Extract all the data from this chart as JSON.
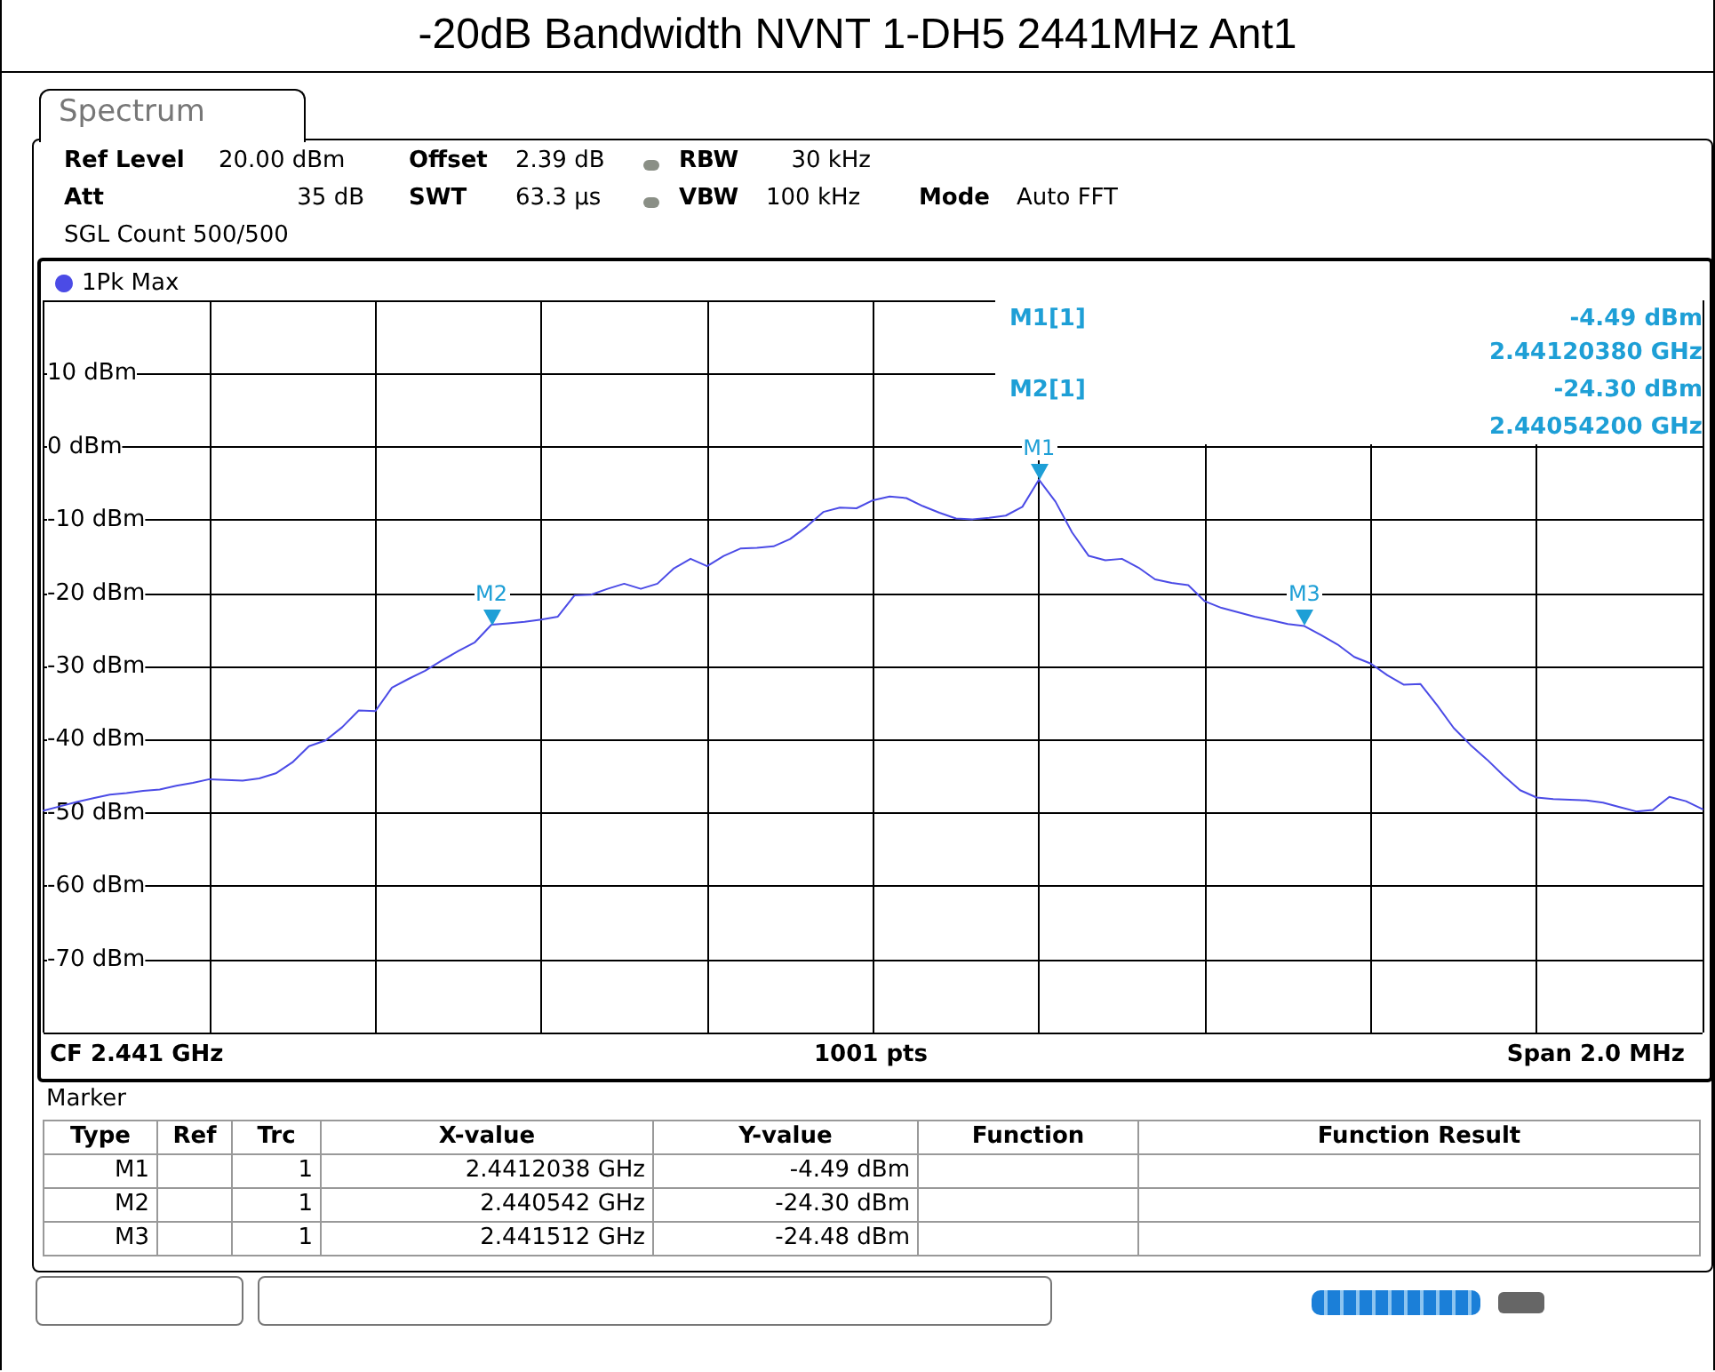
{
  "chart_data": {
    "type": "line",
    "title": "-20dB Bandwidth NVNT 1-DH5 2441MHz Ant1",
    "categories": [
      null,
      null,
      null,
      null,
      null,
      null,
      null,
      null,
      null,
      null,
      null,
      null,
      null,
      null,
      null,
      null,
      null,
      null,
      null,
      null,
      null,
      null,
      null,
      null,
      null,
      null,
      null,
      null,
      null,
      null,
      null,
      null,
      null,
      null,
      null,
      null,
      null,
      null,
      null,
      null,
      null,
      null,
      null,
      null,
      null,
      null,
      null,
      null,
      null,
      null,
      null,
      null,
      null,
      null,
      null,
      null,
      null,
      null,
      null,
      null,
      null,
      null,
      null,
      null,
      null,
      null,
      null,
      null,
      null,
      null,
      null,
      null,
      null,
      null,
      null,
      null,
      null,
      null,
      null,
      null,
      null,
      null,
      null,
      null,
      null,
      null,
      null,
      null,
      null,
      null,
      null,
      null,
      null,
      null,
      null,
      null,
      null,
      null,
      null,
      null,
      null
    ],
    "ylim": [
      -80,
      20
    ],
    "yticks": [
      {
        "value": 10,
        "label": "10 dBm"
      },
      {
        "value": 0,
        "label": "0 dBm"
      },
      {
        "value": -10,
        "label": "-10 dBm"
      },
      {
        "value": -20,
        "label": "-20 dBm"
      },
      {
        "value": -30,
        "label": "-30 dBm"
      },
      {
        "value": -40,
        "label": "-40 dBm"
      },
      {
        "value": -50,
        "label": "-50 dBm"
      },
      {
        "value": -60,
        "label": "-60 dBm"
      },
      {
        "value": -70,
        "label": "-70 dBm"
      }
    ],
    "tick_labels": "y",
    "grid": true,
    "legend": "top left",
    "marker": "none",
    "line_style": "solid",
    "series": [
      {
        "name": "1Pk Max",
        "color": "#4b4be6",
        "values": [
          -49.7,
          -49.1,
          -48.5,
          -48.0,
          -47.5,
          -47.3,
          -47.0,
          -46.8,
          -46.3,
          -45.9,
          -45.4,
          -45.5,
          -45.6,
          -45.3,
          -44.6,
          -43.1,
          -40.9,
          -40.1,
          -38.3,
          -36.0,
          -36.1,
          -32.9,
          -31.7,
          -30.6,
          -29.2,
          -27.9,
          -26.7,
          -24.3,
          -24.1,
          -23.9,
          -23.6,
          -23.2,
          -20.3,
          -20.2,
          -19.4,
          -18.7,
          -19.4,
          -18.7,
          -16.6,
          -15.3,
          -16.3,
          -14.9,
          -13.9,
          -13.8,
          -13.6,
          -12.6,
          -10.9,
          -8.9,
          -8.3,
          -8.4,
          -7.3,
          -6.8,
          -7.0,
          -8.1,
          -9.0,
          -9.8,
          -9.9,
          -9.7,
          -9.4,
          -8.2,
          -4.49,
          -7.5,
          -11.7,
          -14.9,
          -15.5,
          -15.3,
          -16.5,
          -18.1,
          -18.6,
          -18.9,
          -21.1,
          -22.0,
          -22.6,
          -23.2,
          -23.7,
          -24.2,
          -24.48,
          -25.7,
          -27.0,
          -28.7,
          -29.6,
          -31.2,
          -32.5,
          -32.4,
          -35.3,
          -38.4,
          -40.7,
          -42.7,
          -44.9,
          -46.9,
          -47.9,
          -48.1,
          -48.2,
          -48.3,
          -48.6,
          -49.2,
          -49.8,
          -49.6,
          -47.8,
          -48.4,
          -49.5
        ]
      }
    ],
    "annotations": [
      "Spectrum",
      "Ref Level",
      "20.00 dBm",
      "Offset",
      "2.39 dB",
      "RBW",
      "30 kHz",
      "Att",
      "35 dB",
      "SWT",
      "63.3 µs",
      "VBW",
      "100 kHz",
      "Mode",
      "Auto FFT",
      "SGL Count 500/500",
      "M1[1]",
      "-4.49 dBm",
      "2.44120380 GHz",
      "M2[1]",
      "-24.30 dBm",
      "2.44054200 GHz",
      "CF 2.441 GHz",
      "1001 pts",
      "Span 2.0 MHz",
      "Marker",
      "Type",
      "Ref",
      "Trc",
      "X-value",
      "Y-value",
      "Function",
      "Function Result",
      "M1",
      "1",
      "2.4412038 GHz",
      "-4.49 dBm",
      "M2",
      "1",
      "2.440542 GHz",
      "-24.30 dBm",
      "M3",
      "1",
      "2.441512 GHz",
      "-24.48 dBm",
      {
        "text": "M1",
        "y": -4.49
      },
      {
        "text": "M2",
        "y": -24.3
      },
      {
        "text": "M3",
        "y": -24.48
      }
    ]
  }
}
